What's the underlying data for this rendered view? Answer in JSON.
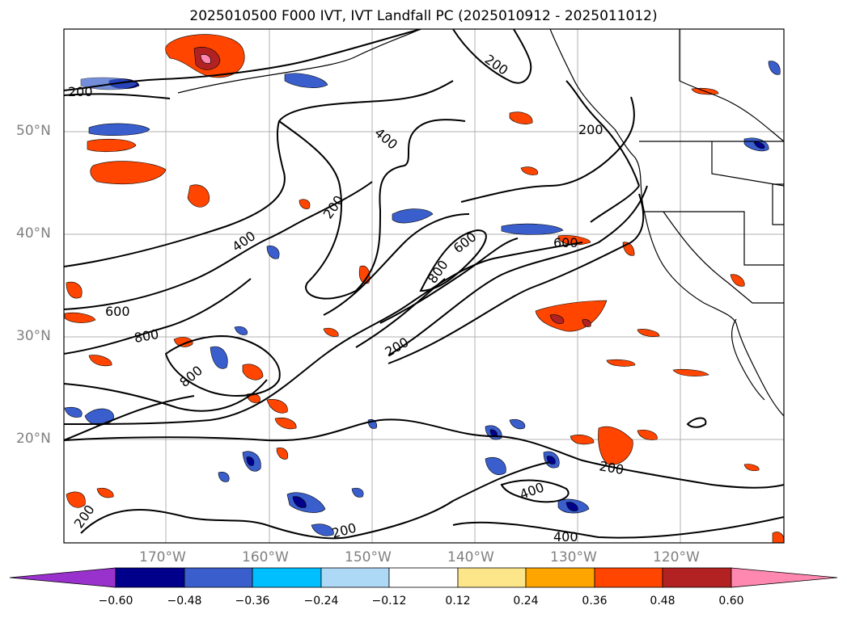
{
  "title": "2025010500 F000 IVT, IVT Landfall PC (2025010912 - 2025011012)",
  "map": {
    "lat_labels": [
      "50°N",
      "40°N",
      "30°N",
      "20°N"
    ],
    "lon_labels": [
      "170°W",
      "160°W",
      "150°W",
      "140°W",
      "130°W",
      "120°W"
    ],
    "contour_labels": [
      "200",
      "400",
      "600",
      "800"
    ]
  },
  "colorbar": {
    "ticks": [
      "−0.60",
      "−0.48",
      "−0.36",
      "−0.24",
      "−0.12",
      "0.12",
      "0.24",
      "0.36",
      "0.48",
      "0.60"
    ],
    "colors": [
      "#9932cc",
      "#00008b",
      "#3a5fcd",
      "#00bfff",
      "#add8f6",
      "#ffffff",
      "#fde68a",
      "#ffa500",
      "#ff4500",
      "#b22222",
      "#ff88b0"
    ]
  }
}
